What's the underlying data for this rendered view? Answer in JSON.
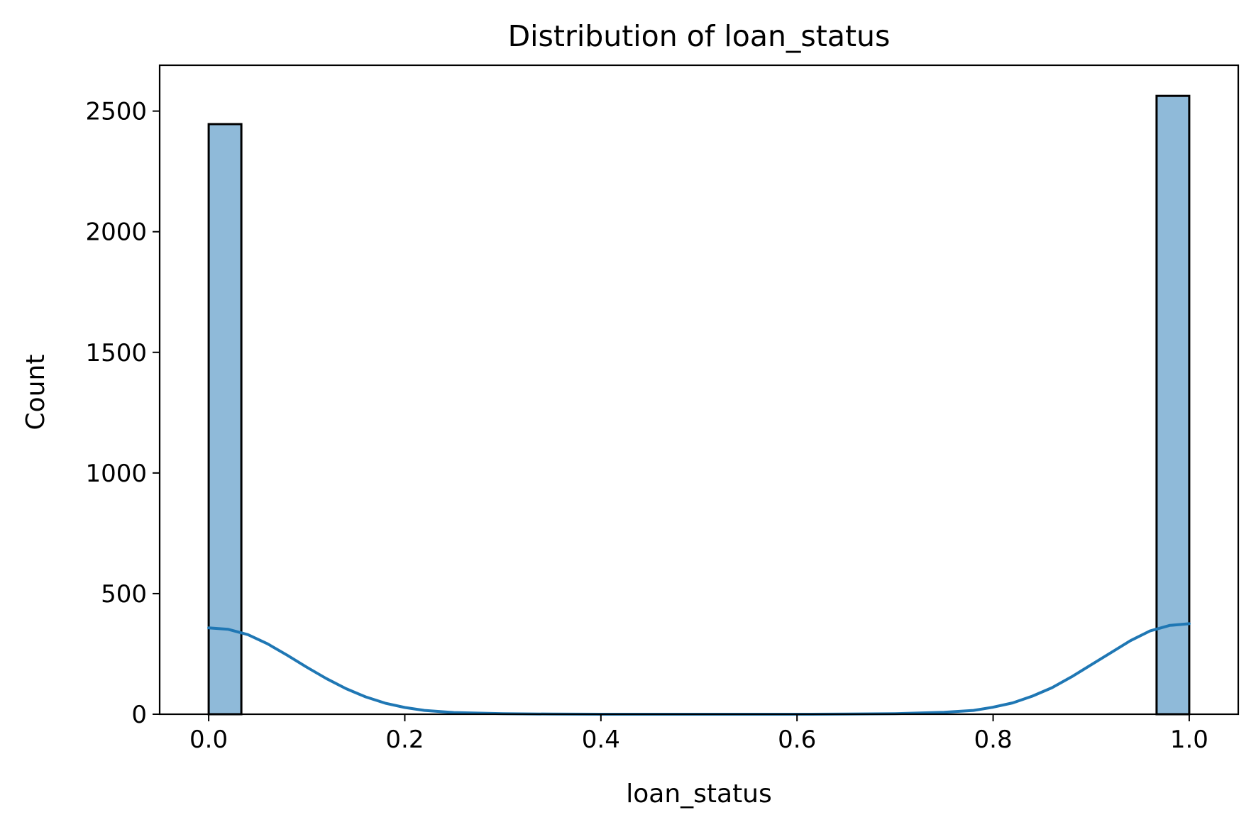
{
  "chart_data": {
    "type": "bar",
    "title": "Distribution of loan_status",
    "xlabel": "loan_status",
    "ylabel": "Count",
    "xlim": [
      -0.05,
      1.05
    ],
    "ylim": [
      0,
      2690
    ],
    "x_ticks": [
      "0.0",
      "0.2",
      "0.4",
      "0.6",
      "0.8",
      "1.0"
    ],
    "x_tick_values": [
      0.0,
      0.2,
      0.4,
      0.6,
      0.8,
      1.0
    ],
    "y_ticks": [
      "0",
      "500",
      "1000",
      "1500",
      "2000",
      "2500"
    ],
    "y_tick_values": [
      0,
      500,
      1000,
      1500,
      2000,
      2500
    ],
    "bins": [
      {
        "x0": 0.0,
        "x1": 0.0333,
        "count": 2446
      },
      {
        "x0": 0.9667,
        "x1": 1.0,
        "count": 2563
      }
    ],
    "kde": {
      "x": [
        0.0,
        0.02,
        0.04,
        0.06,
        0.08,
        0.1,
        0.12,
        0.14,
        0.16,
        0.18,
        0.2,
        0.22,
        0.25,
        0.3,
        0.35,
        0.4,
        0.5,
        0.6,
        0.65,
        0.7,
        0.75,
        0.78,
        0.8,
        0.82,
        0.84,
        0.86,
        0.88,
        0.9,
        0.92,
        0.94,
        0.96,
        0.98,
        1.0
      ],
      "y": [
        358,
        352,
        330,
        292,
        245,
        195,
        148,
        106,
        72,
        46,
        28,
        16,
        7,
        2,
        0.5,
        0,
        0,
        0,
        0.5,
        2,
        8,
        16,
        29,
        47,
        75,
        110,
        155,
        205,
        255,
        305,
        345,
        368,
        375
      ]
    },
    "grid": false,
    "legend": "none",
    "colors": {
      "bar_fill": "#8fbad9",
      "bar_edge": "#000000",
      "kde_line": "#1f77b4",
      "axes": "#000000"
    }
  }
}
